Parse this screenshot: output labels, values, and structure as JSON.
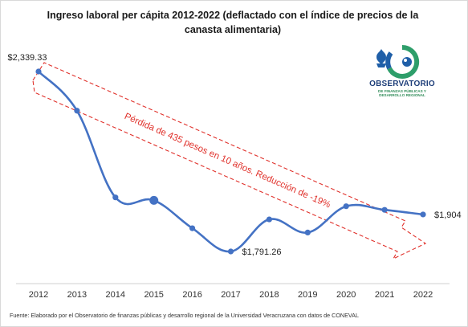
{
  "chart_data": {
    "type": "line",
    "title_line1": "Ingreso laboral per cápita 2012-2022 (deflactado con el índice de precios de la",
    "title_line2": "canasta alimentaria)",
    "categories": [
      "2012",
      "2013",
      "2014",
      "2015",
      "2016",
      "2017",
      "2018",
      "2019",
      "2020",
      "2021",
      "2022"
    ],
    "series": [
      {
        "values": [
          2339.33,
          2220,
          1956,
          1947,
          1862,
          1791.26,
          1889,
          1849,
          1929,
          1918,
          1904
        ],
        "color": "#4472c4"
      }
    ],
    "data_labels": [
      {
        "index": 0,
        "text": "$2,339.33"
      },
      {
        "index": 5,
        "text": "$1,791.26"
      },
      {
        "index": 10,
        "text": "$1,904"
      }
    ],
    "annotation": "Pérdida de 435 pesos en 10 años. Reducción de -19%",
    "annotation_color": "#e0302a",
    "ylim": [
      1700,
      2400
    ],
    "grid": false,
    "source": "Fuente: Elaborado por el Observatorio de finanzas públicas y desarrollo regional de la Universidad Veracruzana con datos de CONEVAL"
  },
  "logo": {
    "name": "OBSERVATORIO",
    "subtitle": "DE FINANZAS PÚBLICAS Y DESARROLLO REGIONAL"
  }
}
